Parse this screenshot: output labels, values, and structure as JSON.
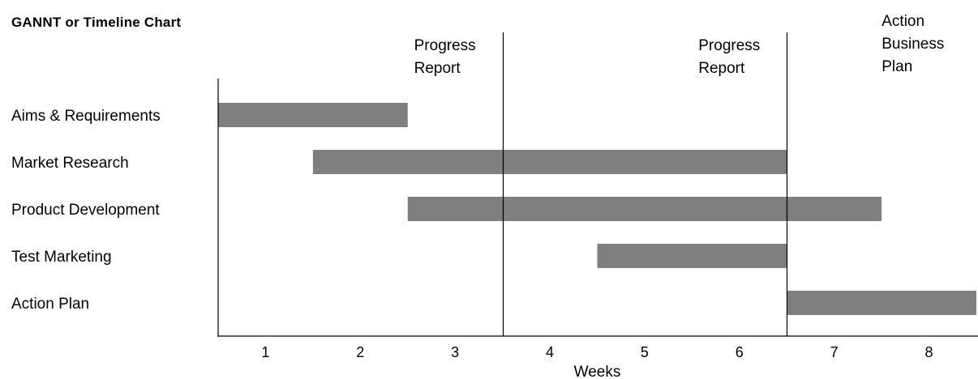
{
  "chart_data": {
    "type": "gantt",
    "title": "GANNT or Timeline Chart",
    "xlabel": "Weeks",
    "ylabel": "",
    "x_ticks": [
      "1",
      "2",
      "3",
      "4",
      "5",
      "6",
      "7",
      "8"
    ],
    "xlim": [
      0.5,
      8.5
    ],
    "grid": false,
    "legend": "none",
    "bar_color": "#7f7f7f",
    "tasks": [
      {
        "name": "Aims & Requirements",
        "start": 0.5,
        "end": 2.5
      },
      {
        "name": "Market Research",
        "start": 1.5,
        "end": 6.5
      },
      {
        "name": "Product Development",
        "start": 2.5,
        "end": 7.5
      },
      {
        "name": "Test Marketing",
        "start": 4.5,
        "end": 6.5
      },
      {
        "name": "Action Plan",
        "start": 6.5,
        "end": 8.5
      }
    ],
    "milestones": [
      {
        "x": 3.5,
        "label_lines": [
          "Progress",
          "Report"
        ]
      },
      {
        "x": 6.5,
        "label_lines": [
          "Progress",
          "Report"
        ]
      },
      {
        "x": 6.5,
        "label_lines": [
          "Action",
          "Business",
          "Plan"
        ]
      }
    ]
  }
}
